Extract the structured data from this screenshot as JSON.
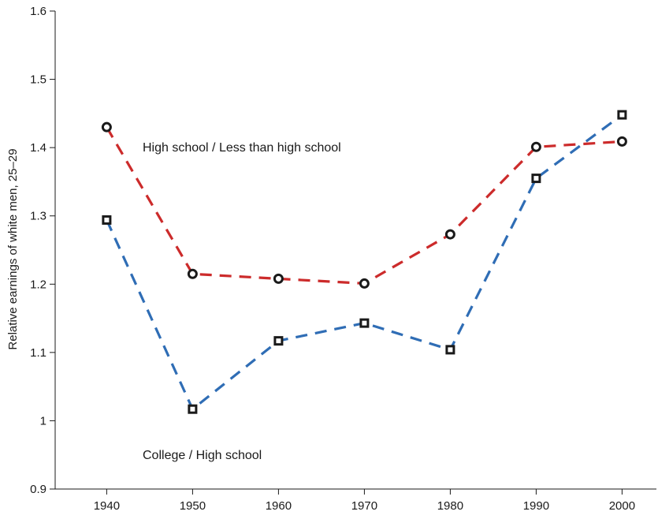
{
  "chart_data": {
    "type": "line",
    "title": "",
    "xlabel": "",
    "ylabel": "Relative earnings of white men, 25–29",
    "x": [
      1940,
      1950,
      1960,
      1970,
      1980,
      1990,
      2000
    ],
    "x_ticks": [
      "1940",
      "1950",
      "1960",
      "1970",
      "1980",
      "1990",
      "2000"
    ],
    "y_ticks": [
      "0.9",
      "1",
      "1.1",
      "1.2",
      "1.3",
      "1.4",
      "1.5",
      "1.6"
    ],
    "xlim": [
      1934,
      2004
    ],
    "ylim": [
      0.9,
      1.6
    ],
    "grid": false,
    "legend": "none",
    "series": [
      {
        "name": "High school / Less than high school",
        "values": [
          1.43,
          1.215,
          1.208,
          1.201,
          1.273,
          1.401,
          1.409
        ],
        "color": "#cc2b2b",
        "marker": "circle",
        "line_style": "dashed"
      },
      {
        "name": "College / High school",
        "values": [
          1.294,
          1.017,
          1.117,
          1.143,
          1.104,
          1.355,
          1.448
        ],
        "color": "#2f6db5",
        "marker": "square",
        "line_style": "dashed"
      }
    ],
    "annotations": [
      {
        "text": "High school / Less than high school",
        "series": 0
      },
      {
        "text": "College / High school",
        "series": 1
      }
    ]
  }
}
